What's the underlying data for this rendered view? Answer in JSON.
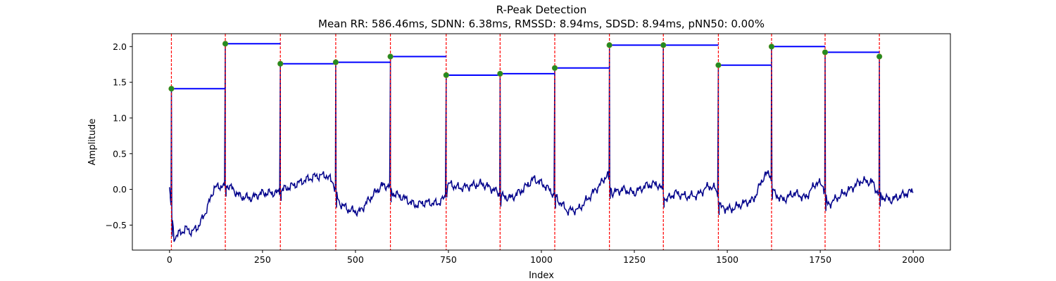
{
  "chart_data": {
    "type": "line",
    "title": "R-Peak Detection",
    "subtitle": "Mean RR: 586.46ms, SDNN: 6.38ms, RMSSD: 8.94ms, SDSD: 8.94ms, pNN50: 0.00%",
    "xlabel": "Index",
    "ylabel": "Amplitude",
    "xlim": [
      -100,
      2100
    ],
    "ylim": [
      -0.85,
      2.18
    ],
    "xticks": [
      0,
      250,
      500,
      750,
      1000,
      1250,
      1500,
      1750,
      2000
    ],
    "yticks": [
      -0.5,
      0.0,
      0.5,
      1.0,
      1.5,
      2.0
    ],
    "grid": false,
    "colors": {
      "signal": "#00008b",
      "peak_lines": "#ff0000",
      "rr_segments": "#0000ff",
      "peak_markers": "#228b22"
    },
    "peaks": {
      "x": [
        5,
        150,
        298,
        447,
        594,
        744,
        889,
        1036,
        1183,
        1328,
        1476,
        1619,
        1763,
        1909
      ],
      "y": [
        1.41,
        2.04,
        1.76,
        1.78,
        1.86,
        1.6,
        1.62,
        1.7,
        2.02,
        2.02,
        1.74,
        2.0,
        1.92,
        1.86
      ]
    },
    "rr_segments": [
      {
        "x_start": 5,
        "x_end": 150,
        "y": 1.41
      },
      {
        "x_start": 150,
        "x_end": 298,
        "y": 2.04
      },
      {
        "x_start": 298,
        "x_end": 447,
        "y": 1.76
      },
      {
        "x_start": 447,
        "x_end": 594,
        "y": 1.78
      },
      {
        "x_start": 594,
        "x_end": 744,
        "y": 1.86
      },
      {
        "x_start": 744,
        "x_end": 889,
        "y": 1.6
      },
      {
        "x_start": 889,
        "x_end": 1036,
        "y": 1.62
      },
      {
        "x_start": 1036,
        "x_end": 1183,
        "y": 1.7
      },
      {
        "x_start": 1183,
        "x_end": 1328,
        "y": 2.02
      },
      {
        "x_start": 1328,
        "x_end": 1476,
        "y": 2.02
      },
      {
        "x_start": 1476,
        "x_end": 1619,
        "y": 1.74
      },
      {
        "x_start": 1619,
        "x_end": 1763,
        "y": 2.0
      },
      {
        "x_start": 1763,
        "x_end": 1909,
        "y": 1.92
      }
    ],
    "signal_baseline": [
      [
        0,
        0.0
      ],
      [
        12,
        -0.68
      ],
      [
        25,
        -0.62
      ],
      [
        45,
        -0.55
      ],
      [
        60,
        -0.6
      ],
      [
        80,
        -0.5
      ],
      [
        100,
        -0.28
      ],
      [
        120,
        0.02
      ],
      [
        140,
        0.05
      ],
      [
        160,
        0.05
      ],
      [
        190,
        -0.1
      ],
      [
        220,
        -0.12
      ],
      [
        250,
        -0.05
      ],
      [
        290,
        -0.05
      ],
      [
        305,
        0.0
      ],
      [
        330,
        0.05
      ],
      [
        360,
        0.12
      ],
      [
        390,
        0.18
      ],
      [
        420,
        0.2
      ],
      [
        440,
        0.1
      ],
      [
        455,
        -0.18
      ],
      [
        480,
        -0.28
      ],
      [
        510,
        -0.32
      ],
      [
        540,
        -0.12
      ],
      [
        570,
        0.05
      ],
      [
        590,
        0.05
      ],
      [
        600,
        -0.05
      ],
      [
        630,
        -0.12
      ],
      [
        660,
        -0.22
      ],
      [
        690,
        -0.18
      ],
      [
        720,
        -0.2
      ],
      [
        740,
        -0.12
      ],
      [
        750,
        0.08
      ],
      [
        780,
        0.02
      ],
      [
        810,
        0.05
      ],
      [
        840,
        0.08
      ],
      [
        870,
        0.0
      ],
      [
        885,
        -0.05
      ],
      [
        895,
        -0.1
      ],
      [
        920,
        -0.12
      ],
      [
        950,
        0.0
      ],
      [
        980,
        0.15
      ],
      [
        1010,
        0.05
      ],
      [
        1030,
        -0.05
      ],
      [
        1045,
        -0.15
      ],
      [
        1070,
        -0.3
      ],
      [
        1100,
        -0.28
      ],
      [
        1130,
        -0.1
      ],
      [
        1160,
        0.08
      ],
      [
        1178,
        0.22
      ],
      [
        1190,
        -0.05
      ],
      [
        1220,
        0.0
      ],
      [
        1250,
        -0.05
      ],
      [
        1280,
        0.05
      ],
      [
        1310,
        0.08
      ],
      [
        1325,
        0.0
      ],
      [
        1335,
        -0.15
      ],
      [
        1360,
        -0.05
      ],
      [
        1390,
        -0.1
      ],
      [
        1420,
        -0.08
      ],
      [
        1450,
        0.05
      ],
      [
        1470,
        0.0
      ],
      [
        1482,
        -0.25
      ],
      [
        1510,
        -0.28
      ],
      [
        1540,
        -0.2
      ],
      [
        1570,
        -0.15
      ],
      [
        1600,
        0.2
      ],
      [
        1615,
        0.22
      ],
      [
        1625,
        -0.05
      ],
      [
        1650,
        -0.15
      ],
      [
        1680,
        -0.05
      ],
      [
        1710,
        -0.12
      ],
      [
        1740,
        0.1
      ],
      [
        1758,
        0.05
      ],
      [
        1770,
        -0.22
      ],
      [
        1800,
        -0.1
      ],
      [
        1830,
        0.0
      ],
      [
        1860,
        0.12
      ],
      [
        1890,
        0.1
      ],
      [
        1905,
        -0.05
      ],
      [
        1915,
        -0.1
      ],
      [
        1940,
        -0.15
      ],
      [
        1970,
        -0.08
      ],
      [
        2000,
        -0.02
      ]
    ]
  }
}
